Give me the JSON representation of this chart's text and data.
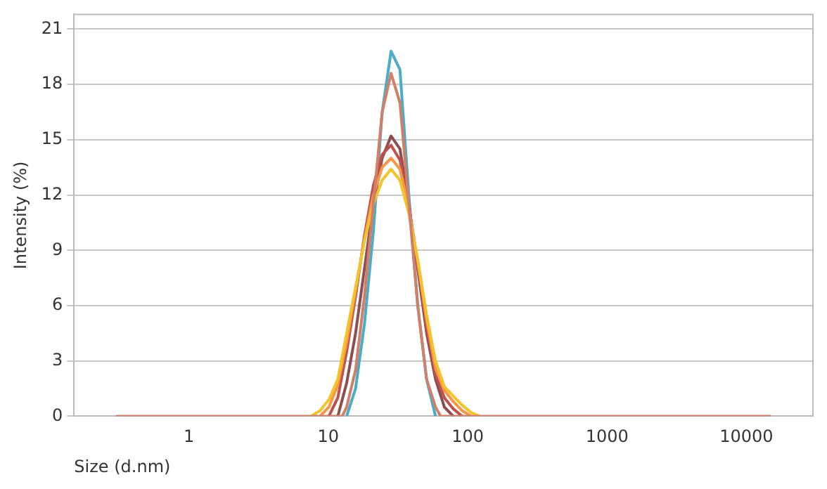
{
  "chart_data": {
    "type": "line",
    "xlabel": "Size (d.nm)",
    "ylabel": "Intensity (%)",
    "log": "x",
    "xlim": [
      0.15,
      30000
    ],
    "xticks": [
      1,
      10,
      100,
      1000,
      10000
    ],
    "ylim": [
      0,
      21.8
    ],
    "yticks": [
      0,
      3,
      6,
      9,
      12,
      15,
      18,
      21
    ],
    "grid": "y",
    "legend": false,
    "marker": "none",
    "line_style": "solid",
    "series": [
      {
        "color": "#d0806a",
        "x": [
          0.3,
          12.6,
          13.54,
          15.69,
          18.17,
          21.04,
          24.36,
          28.21,
          32.67,
          37.84,
          43.82,
          50.75,
          58.77,
          64,
          15000
        ],
        "values": [
          0,
          0,
          0.5,
          2.5,
          6.5,
          11.5,
          16.5,
          18.6,
          17,
          11.5,
          6,
          2,
          0.5,
          0,
          0
        ]
      },
      {
        "color": "#f2c32a",
        "x": [
          7.531,
          8.721,
          10.1,
          11.7,
          13.54,
          15.69,
          18.17,
          21.04,
          24.36,
          28.21,
          32.67,
          37.84,
          43.82,
          50.75,
          58.77,
          68.06,
          78.82,
          91.28,
          105.7,
          122
        ],
        "values": [
          0,
          0.3,
          0.9,
          2,
          4.5,
          7,
          9.5,
          11.5,
          12.8,
          13.4,
          12.8,
          11,
          8.5,
          5.5,
          3,
          1.6,
          1.1,
          0.6,
          0.2,
          0
        ]
      },
      {
        "color": "#f79646",
        "x": [
          8.721,
          10.1,
          11.7,
          13.54,
          15.69,
          18.17,
          21.04,
          24.36,
          28.21,
          32.67,
          37.84,
          43.82,
          50.75,
          58.77,
          68.06,
          78.82,
          91.28,
          105.7
        ],
        "values": [
          0,
          0.5,
          1.7,
          4,
          6.8,
          9.6,
          12,
          13.5,
          14,
          13.4,
          11.3,
          8.4,
          5.2,
          2.6,
          1.4,
          0.8,
          0.3,
          0
        ]
      },
      {
        "color": "#c0504d",
        "x": [
          10.1,
          11.7,
          13.54,
          15.69,
          18.17,
          21.04,
          24.36,
          28.21,
          32.67,
          37.84,
          43.82,
          50.75,
          58.77,
          68.06,
          78.82,
          91.28
        ],
        "values": [
          0,
          1,
          3.5,
          6.5,
          9.8,
          12.5,
          14.2,
          14.7,
          13.9,
          11.4,
          8.2,
          4.9,
          2.3,
          1,
          0.4,
          0
        ]
      },
      {
        "color": "#8b4f4f",
        "x": [
          11.7,
          13.54,
          15.69,
          18.17,
          21.04,
          24.36,
          28.21,
          32.67,
          37.84,
          43.82,
          50.75,
          58.77,
          68.06,
          78.82
        ],
        "values": [
          0,
          1.8,
          4.5,
          8,
          11.5,
          14,
          15.2,
          14.5,
          11.5,
          8,
          4.5,
          2,
          0.5,
          0
        ]
      },
      {
        "color": "#4bacc6",
        "x": [
          13.54,
          15.69,
          18.17,
          21.04,
          24.36,
          28.21,
          32.67,
          37.84,
          43.82,
          50.75,
          58.77
        ],
        "values": [
          0,
          1.5,
          5,
          10,
          16.5,
          19.8,
          18.8,
          12,
          6,
          2,
          0
        ]
      }
    ]
  }
}
